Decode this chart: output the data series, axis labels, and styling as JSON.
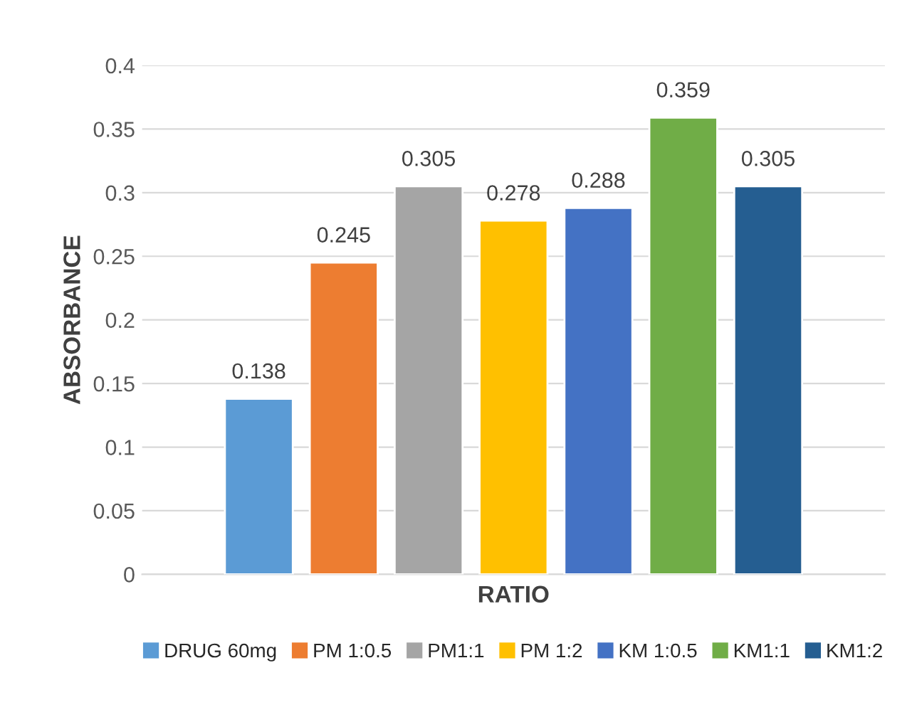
{
  "chart_data": {
    "type": "bar",
    "xlabel": "RATIO",
    "ylabel": "ABSORBANCE",
    "categories": [
      null
    ],
    "series": [
      {
        "name": "DRUG 60mg",
        "color": "#5b9bd5",
        "values": [
          0.138
        ]
      },
      {
        "name": "PM 1:0.5",
        "color": "#ed7d31",
        "values": [
          0.245
        ]
      },
      {
        "name": "PM1:1",
        "color": "#a5a5a5",
        "values": [
          0.305
        ]
      },
      {
        "name": "PM 1:2",
        "color": "#ffc000",
        "values": [
          0.278
        ]
      },
      {
        "name": "KM 1:0.5",
        "color": "#4472c4",
        "values": [
          0.288
        ]
      },
      {
        "name": "KM1:1",
        "color": "#70ad47",
        "values": [
          0.359
        ]
      },
      {
        "name": "KM1:2",
        "color": "#255e91",
        "values": [
          0.305
        ]
      }
    ],
    "ylim": [
      0,
      0.4
    ],
    "yticks": [
      0,
      0.05,
      0.1,
      0.15,
      0.2,
      0.25,
      0.3,
      0.35,
      0.4
    ],
    "grid": "y",
    "legend": "bottom",
    "data_labels": true
  }
}
